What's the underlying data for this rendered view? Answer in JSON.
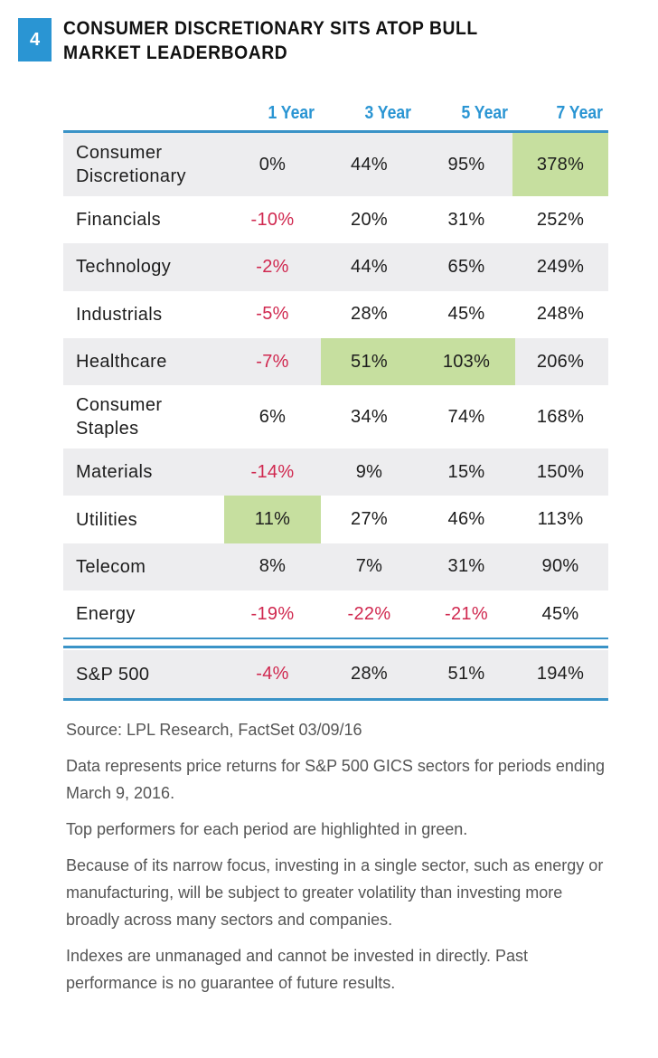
{
  "header": {
    "figure_number": "4",
    "title_line1": "CONSUMER DISCRETIONARY SITS ATOP BULL",
    "title_line2": "MARKET LEADERBOARD"
  },
  "colors": {
    "accent_blue": "#2a95d3",
    "negative_red": "#d0284f",
    "highlight_green": "#c6df9f",
    "row_shade": "#ededef"
  },
  "chart_data": {
    "type": "table",
    "title": "CONSUMER DISCRETIONARY SITS ATOP BULL MARKET LEADERBOARD",
    "columns": [
      "1 Year",
      "3 Year",
      "5 Year",
      "7 Year"
    ],
    "rows": [
      {
        "sector": "Consumer Discretionary",
        "label_lines": [
          "Consumer",
          "Discretionary"
        ],
        "values": [
          "0%",
          "44%",
          "95%",
          "378%"
        ],
        "top": [
          false,
          false,
          false,
          true
        ]
      },
      {
        "sector": "Financials",
        "label_lines": [
          "Financials"
        ],
        "values": [
          "-10%",
          "20%",
          "31%",
          "252%"
        ],
        "top": [
          false,
          false,
          false,
          false
        ]
      },
      {
        "sector": "Technology",
        "label_lines": [
          "Technology"
        ],
        "values": [
          "-2%",
          "44%",
          "65%",
          "249%"
        ],
        "top": [
          false,
          false,
          false,
          false
        ]
      },
      {
        "sector": "Industrials",
        "label_lines": [
          "Industrials"
        ],
        "values": [
          "-5%",
          "28%",
          "45%",
          "248%"
        ],
        "top": [
          false,
          false,
          false,
          false
        ]
      },
      {
        "sector": "Healthcare",
        "label_lines": [
          "Healthcare"
        ],
        "values": [
          "-7%",
          "51%",
          "103%",
          "206%"
        ],
        "top": [
          false,
          true,
          true,
          false
        ]
      },
      {
        "sector": "Consumer Staples",
        "label_lines": [
          "Consumer",
          "Staples"
        ],
        "values": [
          "6%",
          "34%",
          "74%",
          "168%"
        ],
        "top": [
          false,
          false,
          false,
          false
        ]
      },
      {
        "sector": "Materials",
        "label_lines": [
          "Materials"
        ],
        "values": [
          "-14%",
          "9%",
          "15%",
          "150%"
        ],
        "top": [
          false,
          false,
          false,
          false
        ]
      },
      {
        "sector": "Utilities",
        "label_lines": [
          "Utilities"
        ],
        "values": [
          "11%",
          "27%",
          "46%",
          "113%"
        ],
        "top": [
          true,
          false,
          false,
          false
        ]
      },
      {
        "sector": "Telecom",
        "label_lines": [
          "Telecom"
        ],
        "values": [
          "8%",
          "7%",
          "31%",
          "90%"
        ],
        "top": [
          false,
          false,
          false,
          false
        ]
      },
      {
        "sector": "Energy",
        "label_lines": [
          "Energy"
        ],
        "values": [
          "-19%",
          "-22%",
          "-21%",
          "45%"
        ],
        "top": [
          false,
          false,
          false,
          false
        ]
      }
    ],
    "benchmark": {
      "sector": "S&P 500",
      "label_lines": [
        "S&P 500"
      ],
      "values": [
        "-4%",
        "28%",
        "51%",
        "194%"
      ],
      "top": [
        false,
        false,
        false,
        false
      ]
    }
  },
  "notes": [
    "Source: LPL Research, FactSet   03/09/16",
    "Data represents price returns for S&P 500 GICS sectors for periods ending March 9, 2016.",
    "Top performers for each period are highlighted in green.",
    "Because of its narrow focus, investing in a single sector, such as energy or manufacturing, will be subject to greater volatility than investing more broadly across many sectors and companies.",
    "Indexes are unmanaged and cannot be invested in directly. Past performance is no guarantee of future results."
  ]
}
